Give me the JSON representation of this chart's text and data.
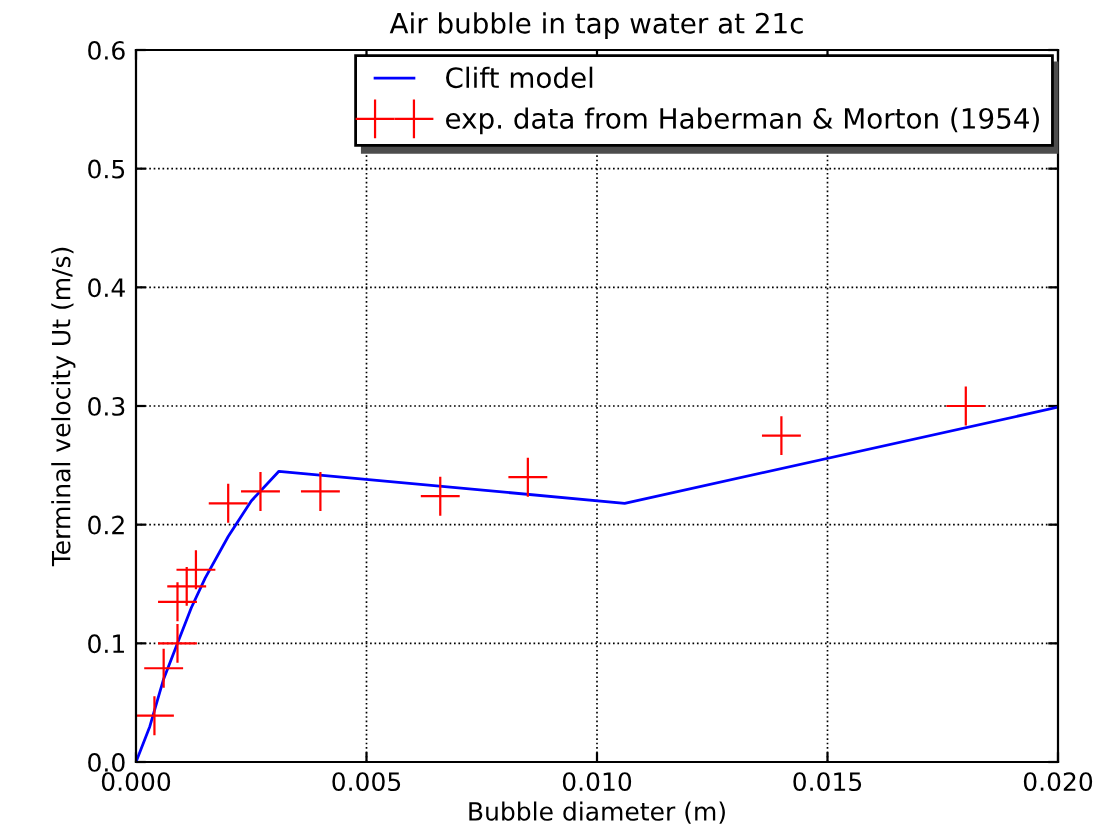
{
  "chart_data": {
    "type": "line",
    "title": "Air bubble in tap water at 21c",
    "xlabel": "Bubble diameter (m)",
    "ylabel": "Terminal velocity Ut (m/s)",
    "series": [
      {
        "name": "Clift model",
        "color": "#0000ff",
        "marker": "none",
        "x": [
          0,
          0.0003,
          0.0006,
          0.0009,
          0.0012,
          0.0015,
          0.002,
          0.0025,
          0.0031,
          0.0106,
          0.02
        ],
        "values": [
          0,
          0.03,
          0.07,
          0.1,
          0.13,
          0.155,
          0.19,
          0.22,
          0.245,
          0.218,
          0.299
        ]
      },
      {
        "name": "exp. data from Haberman & Morton (1954)",
        "type": "scatter",
        "color": "#ff0000",
        "marker": "cross",
        "x": [
          0.0004,
          0.0006,
          0.0009,
          0.0009,
          0.0011,
          0.0013,
          0.002,
          0.0027,
          0.004,
          0.0066,
          0.0085,
          0.014,
          0.018
        ],
        "values": [
          0.039,
          0.079,
          0.1,
          0.135,
          0.148,
          0.162,
          0.218,
          0.228,
          0.228,
          0.224,
          0.24,
          0.275,
          0.3
        ]
      }
    ],
    "xlim": [
      0,
      0.02
    ],
    "xticks": [
      {
        "value": 0,
        "label": "0.000"
      },
      {
        "value": 0.005,
        "label": "0.005"
      },
      {
        "value": 0.01,
        "label": "0.010"
      },
      {
        "value": 0.015,
        "label": "0.015"
      },
      {
        "value": 0.02,
        "label": "0.020"
      }
    ],
    "ylim": [
      0,
      0.6
    ],
    "yticks": [
      {
        "value": 0,
        "label": "0.0"
      },
      {
        "value": 0.1,
        "label": "0.1"
      },
      {
        "value": 0.2,
        "label": "0.2"
      },
      {
        "value": 0.3,
        "label": "0.3"
      },
      {
        "value": 0.4,
        "label": "0.4"
      },
      {
        "value": 0.5,
        "label": "0.5"
      },
      {
        "value": 0.6,
        "label": "0.6"
      }
    ],
    "grid": true,
    "legend": "top right"
  }
}
